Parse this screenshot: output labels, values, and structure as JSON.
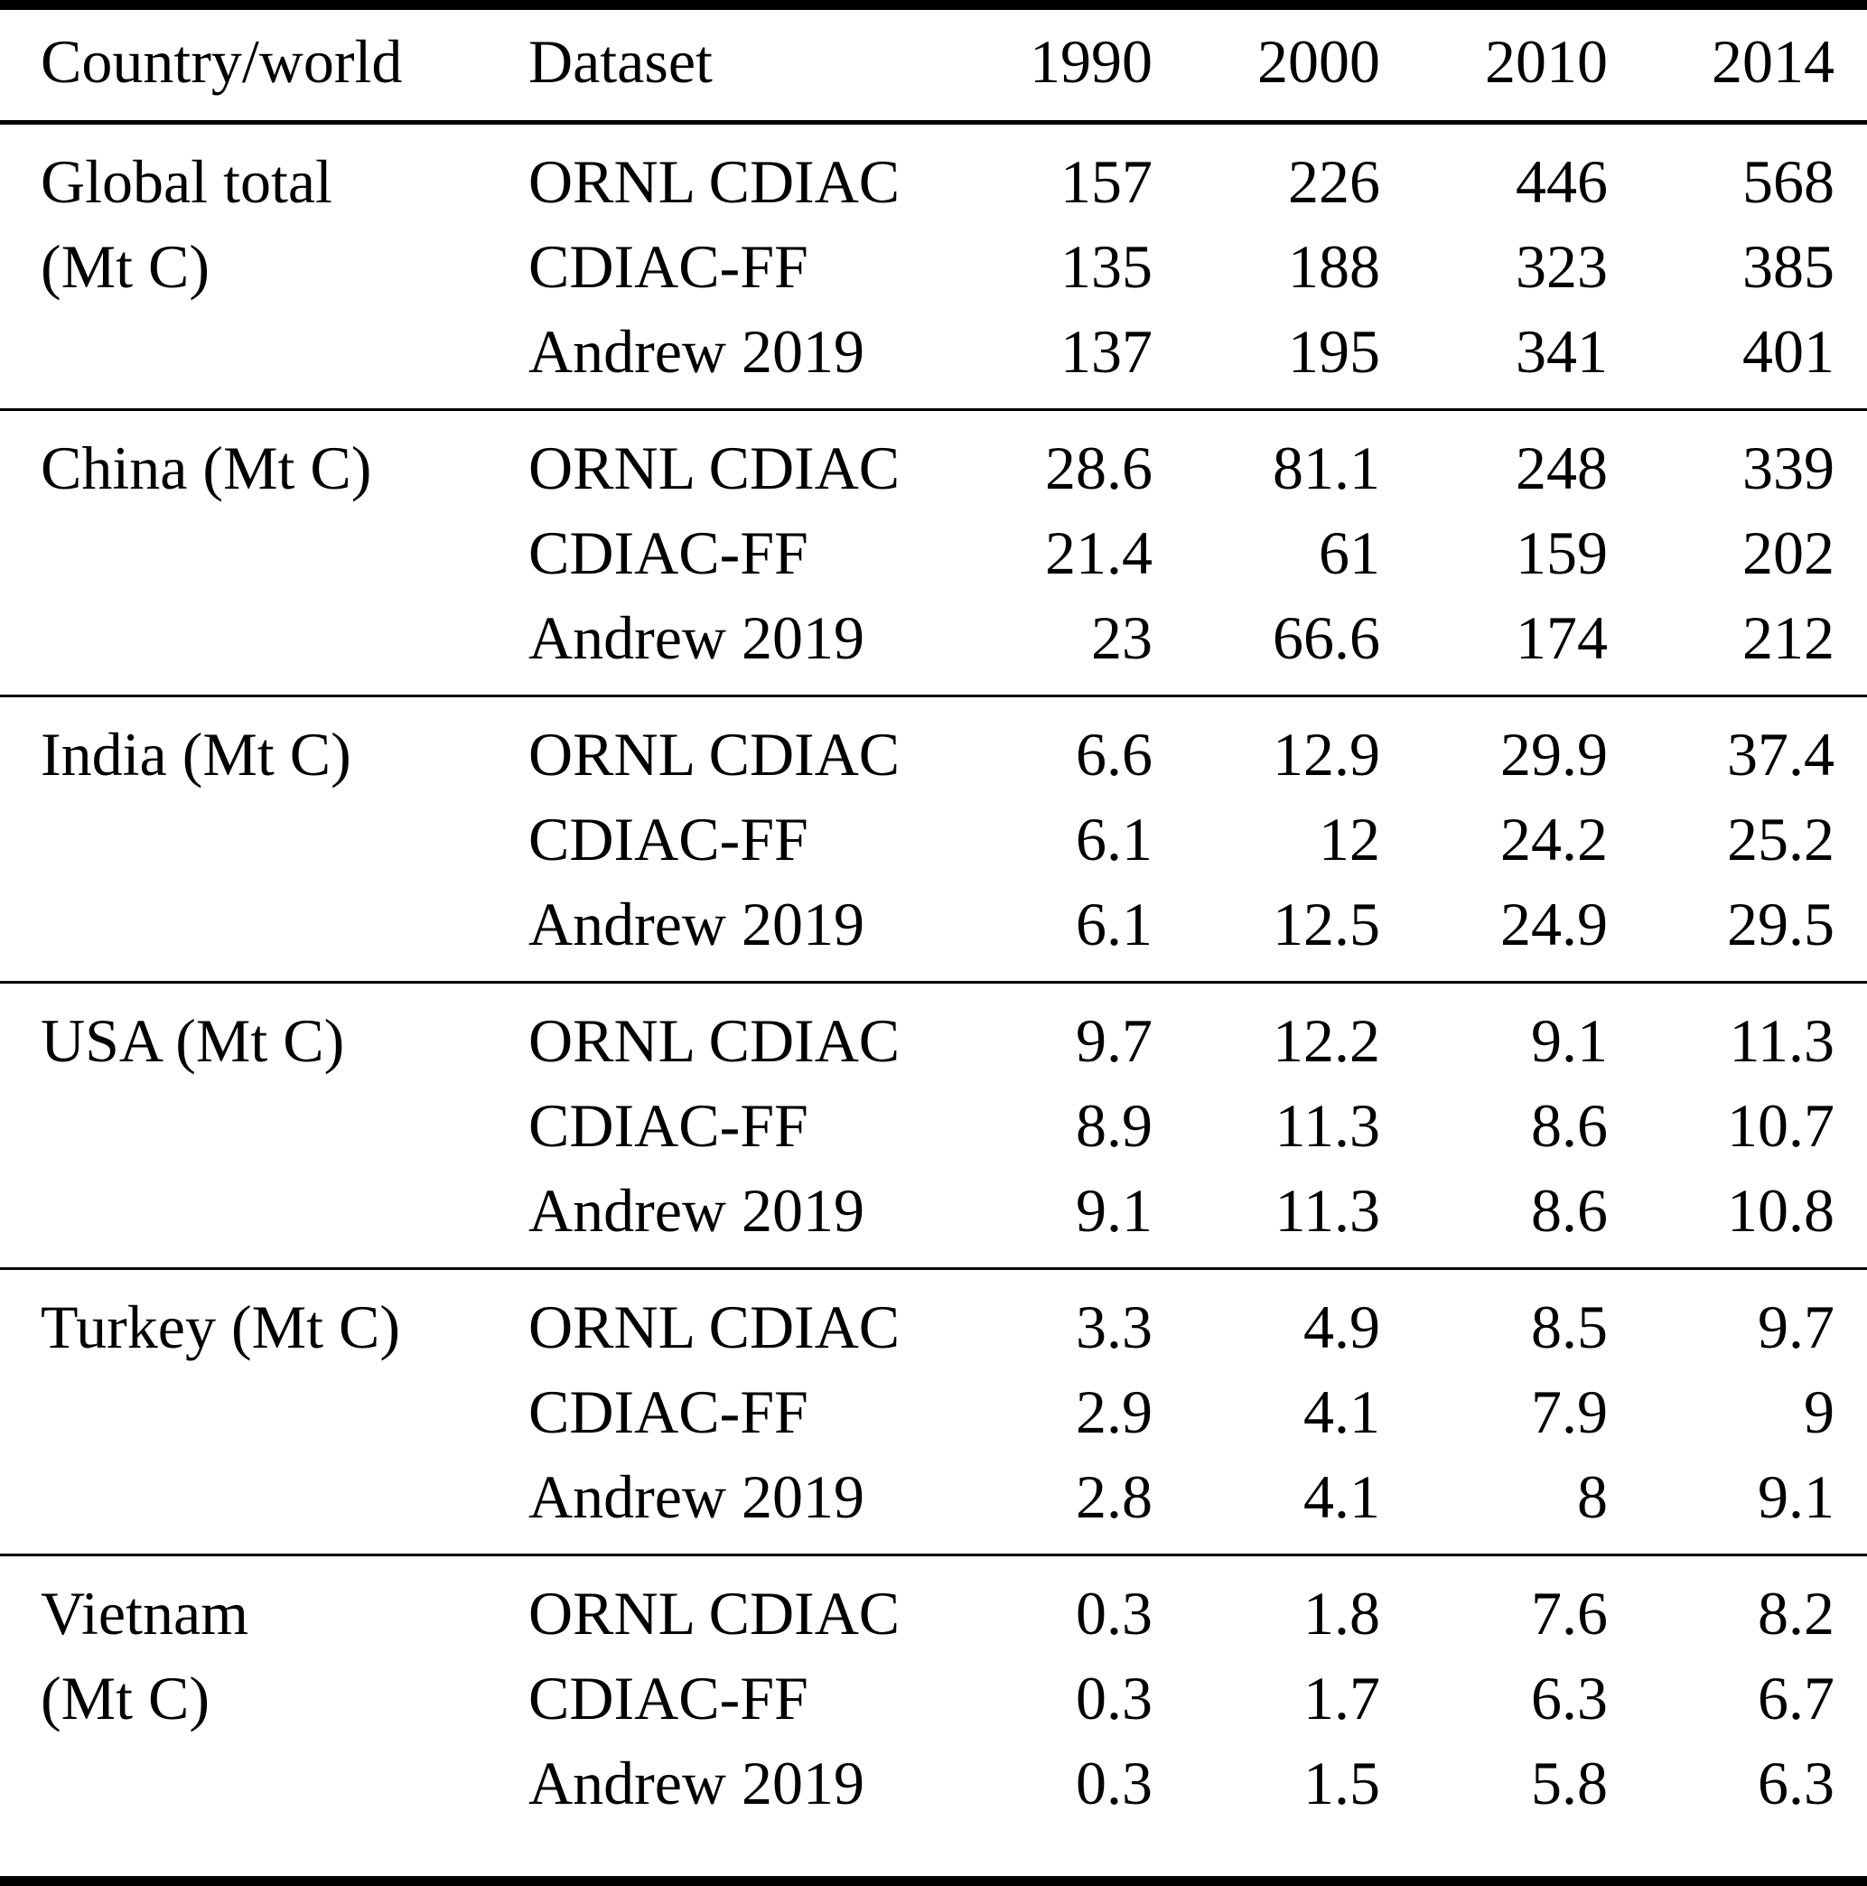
{
  "table": {
    "columns": [
      "Country/world",
      "Dataset",
      "1990",
      "2000",
      "2010",
      "2014"
    ],
    "unit_note": "(Mt C)",
    "sections": [
      {
        "country": "Global total (Mt C)",
        "country_lines": [
          "Global total",
          "(Mt C)"
        ],
        "rows": [
          {
            "dataset": "ORNL CDIAC",
            "values": [
              "157",
              "226",
              "446",
              "568"
            ]
          },
          {
            "dataset": "CDIAC-FF",
            "values": [
              "135",
              "188",
              "323",
              "385"
            ]
          },
          {
            "dataset": "Andrew 2019",
            "values": [
              "137",
              "195",
              "341",
              "401"
            ]
          }
        ]
      },
      {
        "country": "China (Mt C)",
        "country_lines": [
          "China (Mt C)"
        ],
        "rows": [
          {
            "dataset": "ORNL CDIAC",
            "values": [
              "28.6",
              "81.1",
              "248",
              "339"
            ]
          },
          {
            "dataset": "CDIAC-FF",
            "values": [
              "21.4",
              "61",
              "159",
              "202"
            ]
          },
          {
            "dataset": "Andrew 2019",
            "values": [
              "23",
              "66.6",
              "174",
              "212"
            ]
          }
        ]
      },
      {
        "country": "India (Mt C)",
        "country_lines": [
          "India (Mt C)"
        ],
        "rows": [
          {
            "dataset": "ORNL CDIAC",
            "values": [
              "6.6",
              "12.9",
              "29.9",
              "37.4"
            ]
          },
          {
            "dataset": "CDIAC-FF",
            "values": [
              "6.1",
              "12",
              "24.2",
              "25.2"
            ]
          },
          {
            "dataset": "Andrew 2019",
            "values": [
              "6.1",
              "12.5",
              "24.9",
              "29.5"
            ]
          }
        ]
      },
      {
        "country": "USA (Mt C)",
        "country_lines": [
          "USA (Mt C)"
        ],
        "rows": [
          {
            "dataset": "ORNL CDIAC",
            "values": [
              "9.7",
              "12.2",
              "9.1",
              "11.3"
            ]
          },
          {
            "dataset": "CDIAC-FF",
            "values": [
              "8.9",
              "11.3",
              "8.6",
              "10.7"
            ]
          },
          {
            "dataset": "Andrew 2019",
            "values": [
              "9.1",
              "11.3",
              "8.6",
              "10.8"
            ]
          }
        ]
      },
      {
        "country": "Turkey (Mt C)",
        "country_lines": [
          "Turkey (Mt C)"
        ],
        "rows": [
          {
            "dataset": "ORNL CDIAC",
            "values": [
              "3.3",
              "4.9",
              "8.5",
              "9.7"
            ]
          },
          {
            "dataset": "CDIAC-FF",
            "values": [
              "2.9",
              "4.1",
              "7.9",
              "9"
            ]
          },
          {
            "dataset": "Andrew 2019",
            "values": [
              "2.8",
              "4.1",
              "8",
              "9.1"
            ]
          }
        ]
      },
      {
        "country": "Vietnam (Mt C)",
        "country_lines": [
          "Vietnam",
          "(Mt C)"
        ],
        "rows": [
          {
            "dataset": "ORNL CDIAC",
            "values": [
              "0.3",
              "1.8",
              "7.6",
              "8.2"
            ]
          },
          {
            "dataset": "CDIAC-FF",
            "values": [
              "0.3",
              "1.7",
              "6.3",
              "6.7"
            ]
          },
          {
            "dataset": "Andrew 2019",
            "values": [
              "0.3",
              "1.5",
              "5.8",
              "6.3"
            ]
          }
        ]
      }
    ]
  }
}
